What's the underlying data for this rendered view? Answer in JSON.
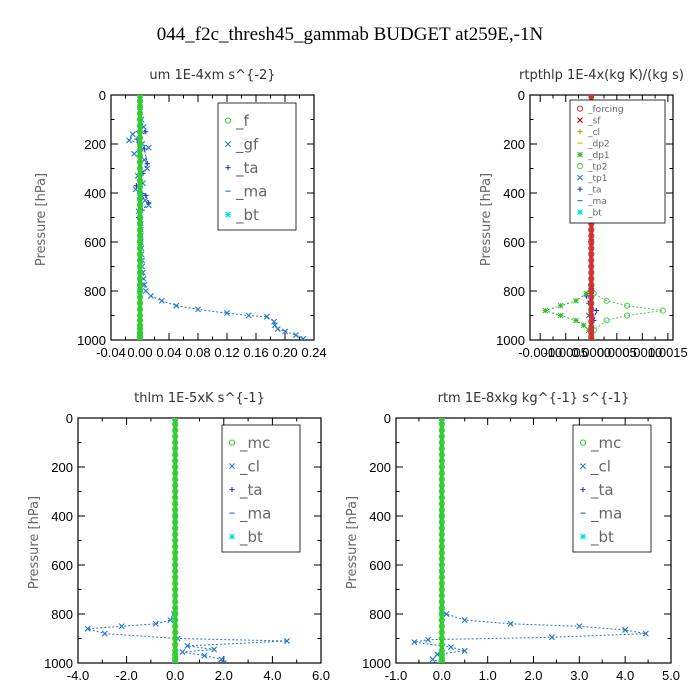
{
  "figure": {
    "suptitle": "044_f2c_thresh45_gammab  BUDGET at259E,-1N"
  },
  "chart_data": [
    {
      "type": "line",
      "title": "um   1E-4xm s^{-2}",
      "ylabel": "Pressure [hPa]",
      "xlim": [
        -0.04,
        0.24
      ],
      "ylim": [
        1000,
        0
      ],
      "xticks": [
        "-0.04",
        "0.00",
        "0.04",
        "0.08",
        "0.12",
        "0.16",
        "0.20",
        "0.24"
      ],
      "yticks": [
        "0",
        "200",
        "400",
        "600",
        "800",
        "1000"
      ],
      "legend": "top-right",
      "series": [
        {
          "name": "_f",
          "color": "#33cc33",
          "marker": "circle",
          "x": [
            0,
            0,
            0,
            0,
            0,
            0,
            0,
            0,
            0,
            0,
            0,
            0,
            0,
            0,
            0,
            0,
            0,
            0,
            0,
            0,
            0,
            0,
            0,
            0,
            0,
            0,
            0,
            0,
            0,
            0,
            0,
            0,
            0,
            0,
            0,
            0,
            0,
            0,
            0,
            0,
            0,
            0,
            0,
            0
          ],
          "y": [
            0,
            25,
            50,
            75,
            100,
            125,
            150,
            175,
            200,
            225,
            250,
            275,
            300,
            325,
            350,
            375,
            400,
            425,
            450,
            475,
            500,
            525,
            550,
            575,
            600,
            625,
            650,
            675,
            700,
            725,
            750,
            775,
            800,
            825,
            850,
            875,
            900,
            920,
            940,
            955,
            970,
            980,
            990,
            1000
          ]
        },
        {
          "name": "_gf",
          "color": "#1f77d0",
          "marker": "cross",
          "x": [
            0,
            0,
            0.002,
            0.005,
            -0.01,
            -0.015,
            0.003,
            0.012,
            -0.008,
            0.006,
            0.01,
            -0.003,
            0.004,
            -0.006,
            0.002,
            0.007,
            0.012,
            -0.002,
            0,
            0.001,
            0.001,
            0.001,
            0.001,
            0.002,
            0.002,
            0.003,
            0.003,
            0.004,
            0.005,
            0.006,
            0.008,
            0.015,
            0.03,
            0.05,
            0.08,
            0.12,
            0.15,
            0.175,
            0.185,
            0.186,
            0.19,
            0.2,
            0.215,
            0.225
          ],
          "y": [
            0,
            50,
            100,
            130,
            160,
            185,
            200,
            215,
            240,
            265,
            300,
            330,
            360,
            385,
            410,
            430,
            450,
            475,
            500,
            525,
            550,
            575,
            600,
            625,
            650,
            675,
            700,
            725,
            750,
            775,
            800,
            820,
            840,
            860,
            875,
            890,
            900,
            905,
            925,
            940,
            955,
            965,
            980,
            995
          ]
        },
        {
          "name": "_ta",
          "color": "#2233cc",
          "marker": "plus",
          "x": [
            0,
            0,
            0.002,
            0.008,
            -0.004,
            0.006,
            0.01,
            0.004,
            -0.005,
            0.008,
            0.012,
            0.003,
            -0.002,
            0.001,
            0,
            0,
            0
          ],
          "y": [
            0,
            100,
            130,
            150,
            180,
            220,
            280,
            320,
            370,
            410,
            440,
            470,
            500,
            600,
            700,
            800,
            1000
          ]
        },
        {
          "name": "_ma",
          "color": "#3377ee",
          "marker": "dash",
          "x": [
            0,
            0,
            0,
            0,
            0,
            0
          ],
          "y": [
            0,
            200,
            400,
            600,
            800,
            1000
          ]
        },
        {
          "name": "_bt",
          "color": "#00dddd",
          "marker": "star",
          "x": [
            0,
            0,
            0,
            0,
            0,
            0
          ],
          "y": [
            0,
            200,
            400,
            600,
            800,
            1000
          ]
        }
      ]
    },
    {
      "type": "line",
      "title": "rtpthlp   1E-4x(kg K)/(kg s)",
      "ylabel": "Pressure [hPa]",
      "xlim": [
        -0.0012,
        0.0016
      ],
      "ylim": [
        1000,
        0
      ],
      "xticks": [
        "-0.0010",
        "-0.0005",
        "0.0000",
        "0.0005",
        "0.0010",
        "0.0015"
      ],
      "yticks": [
        "0",
        "200",
        "400",
        "600",
        "800",
        "1000"
      ],
      "legend": "top-right",
      "series": [
        {
          "name": "_forcing",
          "color": "#cc3333",
          "marker": "circle",
          "x": [
            0,
            0,
            0,
            0,
            0,
            0,
            0,
            0,
            0,
            0,
            0,
            0,
            0,
            0,
            0,
            0,
            0,
            0,
            0,
            0,
            0,
            0,
            0,
            0,
            0,
            0,
            0,
            0,
            0,
            0,
            0,
            0,
            0,
            0,
            0,
            0,
            0,
            0,
            0,
            0,
            0,
            0
          ],
          "y": [
            0,
            25,
            50,
            75,
            100,
            125,
            150,
            175,
            200,
            225,
            250,
            275,
            300,
            325,
            350,
            375,
            400,
            425,
            450,
            475,
            500,
            525,
            550,
            575,
            600,
            625,
            650,
            675,
            700,
            725,
            750,
            775,
            800,
            825,
            850,
            875,
            900,
            925,
            950,
            970,
            985,
            1000
          ]
        },
        {
          "name": "_sf",
          "color": "#aa0000",
          "marker": "cross",
          "x": [
            0,
            0,
            0,
            0,
            0,
            0
          ],
          "y": [
            0,
            200,
            400,
            600,
            800,
            1000
          ]
        },
        {
          "name": "_cl",
          "color": "#dd8800",
          "marker": "plus",
          "x": [
            0,
            0,
            0,
            0
          ],
          "y": [
            0,
            400,
            800,
            1000
          ]
        },
        {
          "name": "_dp2",
          "color": "#e0c000",
          "marker": "dash",
          "x": [
            0,
            0,
            0,
            0
          ],
          "y": [
            0,
            400,
            800,
            1000
          ]
        },
        {
          "name": "_dp1",
          "color": "#33bb33",
          "marker": "star",
          "x": [
            0,
            0,
            -0.0001,
            -0.0003,
            -0.0006,
            -0.0009,
            -0.0006,
            -0.0003,
            -0.00015,
            -5e-05,
            0
          ],
          "y": [
            0,
            780,
            810,
            840,
            860,
            880,
            900,
            920,
            940,
            960,
            1000
          ]
        },
        {
          "name": "_tp2",
          "color": "#55cc55",
          "marker": "circle",
          "x": [
            0,
            0,
            5e-05,
            0.0003,
            0.0007,
            0.0014,
            0.0007,
            0.0003,
            5e-05,
            0
          ],
          "y": [
            0,
            780,
            810,
            840,
            860,
            880,
            900,
            920,
            960,
            1000
          ]
        },
        {
          "name": "_tp1",
          "color": "#2288aa",
          "marker": "cross",
          "x": [
            0,
            0,
            0,
            -5e-05,
            0,
            0
          ],
          "y": [
            0,
            400,
            800,
            900,
            950,
            1000
          ]
        },
        {
          "name": "_ta",
          "color": "#2233cc",
          "marker": "plus",
          "x": [
            0,
            0,
            -0.0001,
            -5e-05,
            0.0001,
            5e-05,
            0
          ],
          "y": [
            0,
            800,
            820,
            850,
            880,
            920,
            1000
          ]
        },
        {
          "name": "_ma",
          "color": "#3377ee",
          "marker": "dash",
          "x": [
            0,
            0,
            0,
            0
          ],
          "y": [
            0,
            400,
            800,
            1000
          ]
        },
        {
          "name": "_bt",
          "color": "#00dddd",
          "marker": "star",
          "x": [
            0,
            0,
            0,
            0
          ],
          "y": [
            0,
            400,
            800,
            1000
          ]
        }
      ]
    },
    {
      "type": "line",
      "title": "thlm   1E-5xK s^{-1}",
      "ylabel": "Pressure [hPa]",
      "xlim": [
        -4.0,
        6.0
      ],
      "ylim": [
        1000,
        0
      ],
      "xticks": [
        "-4.0",
        "-2.0",
        "0.0",
        "2.0",
        "4.0",
        "6.0"
      ],
      "yticks": [
        "0",
        "200",
        "400",
        "600",
        "800",
        "1000"
      ],
      "legend": "top-right",
      "series": [
        {
          "name": "_mc",
          "color": "#33cc33",
          "marker": "circle",
          "x": [
            0,
            0,
            0,
            0,
            0,
            0,
            0,
            0,
            0,
            0,
            0,
            0,
            0,
            0,
            0,
            0,
            0,
            0,
            0,
            0,
            0,
            0,
            0,
            0,
            0,
            0,
            0,
            0,
            0,
            0,
            0,
            0,
            0,
            0,
            0,
            0,
            0,
            0,
            0,
            0,
            0,
            0,
            0
          ],
          "y": [
            0,
            25,
            50,
            75,
            100,
            125,
            150,
            175,
            200,
            225,
            250,
            275,
            300,
            325,
            350,
            375,
            400,
            425,
            450,
            475,
            500,
            525,
            550,
            575,
            600,
            625,
            650,
            675,
            700,
            725,
            750,
            775,
            800,
            825,
            850,
            875,
            900,
            925,
            950,
            965,
            980,
            990,
            1000
          ]
        },
        {
          "name": "_cl",
          "color": "#1f77d0",
          "marker": "cross",
          "x": [
            0,
            0,
            -0.05,
            -0.2,
            -0.8,
            -2.2,
            -3.6,
            -2.9,
            0.1,
            4.6,
            0.5,
            1.6,
            0.3,
            1.2,
            1.9,
            2.0
          ],
          "y": [
            0,
            790,
            800,
            825,
            840,
            850,
            860,
            880,
            900,
            910,
            930,
            945,
            955,
            970,
            985,
            1000
          ]
        },
        {
          "name": "_ta",
          "color": "#2233cc",
          "marker": "plus",
          "x": [
            0,
            0,
            0,
            0
          ],
          "y": [
            0,
            400,
            800,
            1000
          ]
        },
        {
          "name": "_ma",
          "color": "#3377ee",
          "marker": "dash",
          "x": [
            0,
            0,
            0,
            0
          ],
          "y": [
            0,
            400,
            800,
            1000
          ]
        },
        {
          "name": "_bt",
          "color": "#00dddd",
          "marker": "star",
          "x": [
            0,
            0,
            0,
            0
          ],
          "y": [
            0,
            400,
            800,
            1000
          ]
        }
      ]
    },
    {
      "type": "line",
      "title": "rtm   1E-8xkg kg^{-1} s^{-1}",
      "ylabel": "Pressure [hPa]",
      "xlim": [
        -1.0,
        5.0
      ],
      "ylim": [
        1000,
        0
      ],
      "xticks": [
        "-1.0",
        "0.0",
        "1.0",
        "2.0",
        "3.0",
        "4.0",
        "5.0"
      ],
      "yticks": [
        "0",
        "200",
        "400",
        "600",
        "800",
        "1000"
      ],
      "legend": "top-right",
      "series": [
        {
          "name": "_mc",
          "color": "#33cc33",
          "marker": "circle",
          "x": [
            0,
            0,
            0,
            0,
            0,
            0,
            0,
            0,
            0,
            0,
            0,
            0,
            0,
            0,
            0,
            0,
            0,
            0,
            0,
            0,
            0,
            0,
            0,
            0,
            0,
            0,
            0,
            0,
            0,
            0,
            0,
            0,
            0,
            0,
            0,
            0,
            0,
            0,
            0,
            0,
            0,
            0,
            0
          ],
          "y": [
            0,
            25,
            50,
            75,
            100,
            125,
            150,
            175,
            200,
            225,
            250,
            275,
            300,
            325,
            350,
            375,
            400,
            425,
            450,
            475,
            500,
            525,
            550,
            575,
            600,
            625,
            650,
            675,
            700,
            725,
            750,
            775,
            800,
            825,
            850,
            875,
            900,
            925,
            950,
            965,
            980,
            990,
            1000
          ]
        },
        {
          "name": "_cl",
          "color": "#1f77d0",
          "marker": "cross",
          "x": [
            0,
            0,
            0.1,
            0.5,
            1.5,
            3.0,
            4.0,
            4.45,
            2.4,
            -0.3,
            -0.6,
            0.2,
            0.5,
            -0.1,
            -0.2,
            0
          ],
          "y": [
            0,
            790,
            800,
            825,
            840,
            850,
            865,
            880,
            895,
            905,
            915,
            935,
            950,
            965,
            985,
            1000
          ]
        },
        {
          "name": "_ta",
          "color": "#2233cc",
          "marker": "plus",
          "x": [
            0,
            0,
            0,
            0
          ],
          "y": [
            0,
            400,
            800,
            1000
          ]
        },
        {
          "name": "_ma",
          "color": "#3377ee",
          "marker": "dash",
          "x": [
            0,
            0,
            0,
            0
          ],
          "y": [
            0,
            400,
            800,
            1000
          ]
        },
        {
          "name": "_bt",
          "color": "#00dddd",
          "marker": "star",
          "x": [
            0,
            0,
            0,
            0
          ],
          "y": [
            0,
            400,
            800,
            1000
          ]
        }
      ]
    }
  ]
}
